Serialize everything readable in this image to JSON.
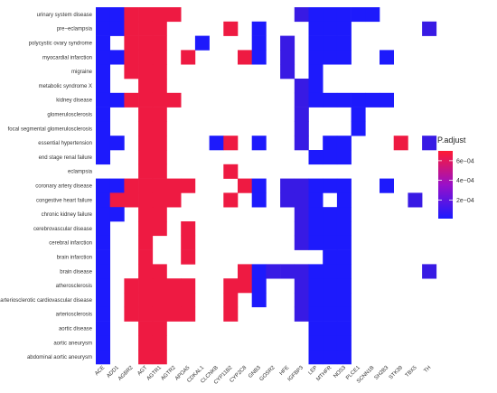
{
  "chart_data": {
    "type": "heatmap",
    "rows": [
      "urinary system disease",
      "pre−eclampsia",
      "polycystic ovary syndrome",
      "myocardial infarction",
      "migraine",
      "metabolic syndrome X",
      "kidney disease",
      "glomerulosclerosis",
      "focal segmental glomerulosclerosis",
      "essential hypertension",
      "end stage renal failure",
      "eclampsia",
      "coronary artery disease",
      "congestive heart failure",
      "chronic kidney failure",
      "cerebrovascular disease",
      "cerebral infarction",
      "brain infarction",
      "brain disease",
      "atherosclerosis",
      "arteriosclerotic cardiovascular disease",
      "arteriosclerosis",
      "aortic disease",
      "aortic aneurysm",
      "abdominal aortic aneurysm"
    ],
    "columns": [
      "ACE",
      "ADD1",
      "AGBR2",
      "AGT",
      "AGTR1",
      "AGTR2",
      "APOA5",
      "CDKAL1",
      "CLCNKB",
      "CYP11B2",
      "CYP2C8",
      "GNB3",
      "GOSR2",
      "HFE",
      "IGFBP3",
      "LEP",
      "MTHFR",
      "NOS3",
      "PLCE1",
      "SCNN1B",
      "SH2B3",
      "STK39",
      "TBX5",
      "TH"
    ],
    "cells": [
      [
        0,
        0,
        "b"
      ],
      [
        0,
        1,
        "b"
      ],
      [
        0,
        2,
        "r"
      ],
      [
        0,
        3,
        "r"
      ],
      [
        0,
        4,
        "r"
      ],
      [
        0,
        5,
        "r"
      ],
      [
        0,
        14,
        "p"
      ],
      [
        0,
        15,
        "b"
      ],
      [
        0,
        16,
        "b"
      ],
      [
        0,
        17,
        "b"
      ],
      [
        0,
        18,
        "b"
      ],
      [
        0,
        19,
        "b"
      ],
      [
        1,
        0,
        "b"
      ],
      [
        1,
        1,
        "b"
      ],
      [
        1,
        2,
        "r"
      ],
      [
        1,
        3,
        "r"
      ],
      [
        1,
        4,
        "r"
      ],
      [
        1,
        9,
        "r"
      ],
      [
        1,
        11,
        "b"
      ],
      [
        1,
        15,
        "b"
      ],
      [
        1,
        16,
        "b"
      ],
      [
        1,
        17,
        "b"
      ],
      [
        1,
        23,
        "p"
      ],
      [
        2,
        0,
        "b"
      ],
      [
        2,
        2,
        "r"
      ],
      [
        2,
        3,
        "r"
      ],
      [
        2,
        4,
        "r"
      ],
      [
        2,
        7,
        "b"
      ],
      [
        2,
        11,
        "b"
      ],
      [
        2,
        13,
        "p"
      ],
      [
        2,
        15,
        "b"
      ],
      [
        2,
        16,
        "b"
      ],
      [
        2,
        17,
        "b"
      ],
      [
        3,
        0,
        "b"
      ],
      [
        3,
        1,
        "b"
      ],
      [
        3,
        2,
        "r"
      ],
      [
        3,
        3,
        "r"
      ],
      [
        3,
        4,
        "r"
      ],
      [
        3,
        6,
        "r"
      ],
      [
        3,
        10,
        "r"
      ],
      [
        3,
        11,
        "b"
      ],
      [
        3,
        13,
        "p"
      ],
      [
        3,
        15,
        "b"
      ],
      [
        3,
        16,
        "b"
      ],
      [
        3,
        17,
        "b"
      ],
      [
        3,
        20,
        "b"
      ],
      [
        4,
        0,
        "b"
      ],
      [
        4,
        2,
        "r"
      ],
      [
        4,
        3,
        "r"
      ],
      [
        4,
        4,
        "r"
      ],
      [
        4,
        13,
        "p"
      ],
      [
        4,
        15,
        "b"
      ],
      [
        5,
        0,
        "b"
      ],
      [
        5,
        3,
        "r"
      ],
      [
        5,
        4,
        "r"
      ],
      [
        5,
        14,
        "p"
      ],
      [
        5,
        15,
        "b"
      ],
      [
        6,
        0,
        "b"
      ],
      [
        6,
        1,
        "b"
      ],
      [
        6,
        2,
        "r"
      ],
      [
        6,
        3,
        "r"
      ],
      [
        6,
        4,
        "r"
      ],
      [
        6,
        5,
        "r"
      ],
      [
        6,
        14,
        "p"
      ],
      [
        6,
        15,
        "b"
      ],
      [
        6,
        16,
        "b"
      ],
      [
        6,
        17,
        "b"
      ],
      [
        6,
        18,
        "b"
      ],
      [
        6,
        19,
        "b"
      ],
      [
        6,
        20,
        "b"
      ],
      [
        7,
        0,
        "b"
      ],
      [
        7,
        3,
        "r"
      ],
      [
        7,
        4,
        "r"
      ],
      [
        7,
        14,
        "p"
      ],
      [
        7,
        18,
        "b"
      ],
      [
        8,
        0,
        "b"
      ],
      [
        8,
        3,
        "r"
      ],
      [
        8,
        4,
        "r"
      ],
      [
        8,
        14,
        "p"
      ],
      [
        8,
        18,
        "b"
      ],
      [
        9,
        0,
        "b"
      ],
      [
        9,
        1,
        "b"
      ],
      [
        9,
        3,
        "r"
      ],
      [
        9,
        4,
        "r"
      ],
      [
        9,
        8,
        "b"
      ],
      [
        9,
        9,
        "r"
      ],
      [
        9,
        11,
        "b"
      ],
      [
        9,
        14,
        "p"
      ],
      [
        9,
        16,
        "b"
      ],
      [
        9,
        17,
        "b"
      ],
      [
        9,
        21,
        "r"
      ],
      [
        9,
        23,
        "p"
      ],
      [
        10,
        0,
        "b"
      ],
      [
        10,
        3,
        "r"
      ],
      [
        10,
        4,
        "r"
      ],
      [
        10,
        15,
        "b"
      ],
      [
        10,
        16,
        "b"
      ],
      [
        10,
        17,
        "b"
      ],
      [
        11,
        3,
        "r"
      ],
      [
        11,
        4,
        "r"
      ],
      [
        11,
        9,
        "r"
      ],
      [
        12,
        0,
        "b"
      ],
      [
        12,
        1,
        "b"
      ],
      [
        12,
        2,
        "r"
      ],
      [
        12,
        3,
        "r"
      ],
      [
        12,
        4,
        "r"
      ],
      [
        12,
        5,
        "r"
      ],
      [
        12,
        6,
        "r"
      ],
      [
        12,
        10,
        "r"
      ],
      [
        12,
        11,
        "b"
      ],
      [
        12,
        13,
        "p"
      ],
      [
        12,
        14,
        "p"
      ],
      [
        12,
        15,
        "b"
      ],
      [
        12,
        16,
        "b"
      ],
      [
        12,
        17,
        "b"
      ],
      [
        12,
        20,
        "b"
      ],
      [
        13,
        0,
        "b"
      ],
      [
        13,
        1,
        "r"
      ],
      [
        13,
        2,
        "r"
      ],
      [
        13,
        3,
        "r"
      ],
      [
        13,
        4,
        "r"
      ],
      [
        13,
        5,
        "r"
      ],
      [
        13,
        9,
        "r"
      ],
      [
        13,
        11,
        "b"
      ],
      [
        13,
        13,
        "p"
      ],
      [
        13,
        14,
        "p"
      ],
      [
        13,
        15,
        "b"
      ],
      [
        13,
        17,
        "b"
      ],
      [
        13,
        22,
        "p"
      ],
      [
        14,
        0,
        "b"
      ],
      [
        14,
        1,
        "b"
      ],
      [
        14,
        3,
        "r"
      ],
      [
        14,
        4,
        "r"
      ],
      [
        14,
        14,
        "p"
      ],
      [
        14,
        15,
        "b"
      ],
      [
        14,
        16,
        "b"
      ],
      [
        14,
        17,
        "b"
      ],
      [
        15,
        0,
        "b"
      ],
      [
        15,
        3,
        "r"
      ],
      [
        15,
        4,
        "r"
      ],
      [
        15,
        6,
        "r"
      ],
      [
        15,
        14,
        "p"
      ],
      [
        15,
        15,
        "b"
      ],
      [
        15,
        16,
        "b"
      ],
      [
        15,
        17,
        "b"
      ],
      [
        16,
        0,
        "b"
      ],
      [
        16,
        3,
        "r"
      ],
      [
        16,
        6,
        "r"
      ],
      [
        16,
        14,
        "p"
      ],
      [
        16,
        15,
        "b"
      ],
      [
        16,
        16,
        "b"
      ],
      [
        16,
        17,
        "b"
      ],
      [
        17,
        0,
        "b"
      ],
      [
        17,
        3,
        "r"
      ],
      [
        17,
        6,
        "r"
      ],
      [
        17,
        16,
        "b"
      ],
      [
        17,
        17,
        "b"
      ],
      [
        18,
        0,
        "b"
      ],
      [
        18,
        3,
        "r"
      ],
      [
        18,
        4,
        "r"
      ],
      [
        18,
        10,
        "r"
      ],
      [
        18,
        11,
        "b"
      ],
      [
        18,
        12,
        "p"
      ],
      [
        18,
        13,
        "p"
      ],
      [
        18,
        14,
        "p"
      ],
      [
        18,
        15,
        "b"
      ],
      [
        18,
        16,
        "b"
      ],
      [
        18,
        17,
        "b"
      ],
      [
        18,
        23,
        "p"
      ],
      [
        19,
        0,
        "b"
      ],
      [
        19,
        2,
        "r"
      ],
      [
        19,
        3,
        "r"
      ],
      [
        19,
        4,
        "r"
      ],
      [
        19,
        5,
        "r"
      ],
      [
        19,
        6,
        "r"
      ],
      [
        19,
        9,
        "r"
      ],
      [
        19,
        10,
        "r"
      ],
      [
        19,
        11,
        "b"
      ],
      [
        19,
        14,
        "p"
      ],
      [
        19,
        15,
        "b"
      ],
      [
        19,
        16,
        "b"
      ],
      [
        19,
        17,
        "b"
      ],
      [
        20,
        0,
        "b"
      ],
      [
        20,
        2,
        "r"
      ],
      [
        20,
        3,
        "r"
      ],
      [
        20,
        4,
        "r"
      ],
      [
        20,
        5,
        "r"
      ],
      [
        20,
        6,
        "r"
      ],
      [
        20,
        9,
        "r"
      ],
      [
        20,
        11,
        "b"
      ],
      [
        20,
        14,
        "p"
      ],
      [
        20,
        15,
        "b"
      ],
      [
        20,
        16,
        "b"
      ],
      [
        20,
        17,
        "b"
      ],
      [
        21,
        0,
        "b"
      ],
      [
        21,
        2,
        "r"
      ],
      [
        21,
        3,
        "r"
      ],
      [
        21,
        4,
        "r"
      ],
      [
        21,
        5,
        "r"
      ],
      [
        21,
        6,
        "r"
      ],
      [
        21,
        9,
        "r"
      ],
      [
        21,
        14,
        "p"
      ],
      [
        21,
        15,
        "b"
      ],
      [
        21,
        16,
        "b"
      ],
      [
        21,
        17,
        "b"
      ],
      [
        22,
        0,
        "b"
      ],
      [
        22,
        3,
        "r"
      ],
      [
        22,
        4,
        "r"
      ],
      [
        22,
        15,
        "b"
      ],
      [
        22,
        16,
        "b"
      ],
      [
        22,
        17,
        "b"
      ],
      [
        23,
        0,
        "b"
      ],
      [
        23,
        3,
        "r"
      ],
      [
        23,
        4,
        "r"
      ],
      [
        23,
        15,
        "b"
      ],
      [
        23,
        16,
        "b"
      ],
      [
        23,
        17,
        "b"
      ],
      [
        24,
        0,
        "b"
      ],
      [
        24,
        3,
        "r"
      ],
      [
        24,
        4,
        "r"
      ],
      [
        24,
        15,
        "b"
      ],
      [
        24,
        16,
        "b"
      ],
      [
        24,
        17,
        "b"
      ]
    ],
    "value_levels": {
      "r": 0.00065,
      "p": 0.0001,
      "b": 2e-05
    },
    "color_scale": {
      "low": "#1a1aff",
      "high": "#ff1a33",
      "min": 1e-05,
      "max": 0.0007
    },
    "legend": {
      "title": "P.adjust",
      "ticks": [
        {
          "value": 0.0006,
          "label": "6e−04"
        },
        {
          "value": 0.0004,
          "label": "4e−04"
        },
        {
          "value": 0.0002,
          "label": "2e−04"
        }
      ],
      "placement": "right"
    },
    "grid": false
  }
}
